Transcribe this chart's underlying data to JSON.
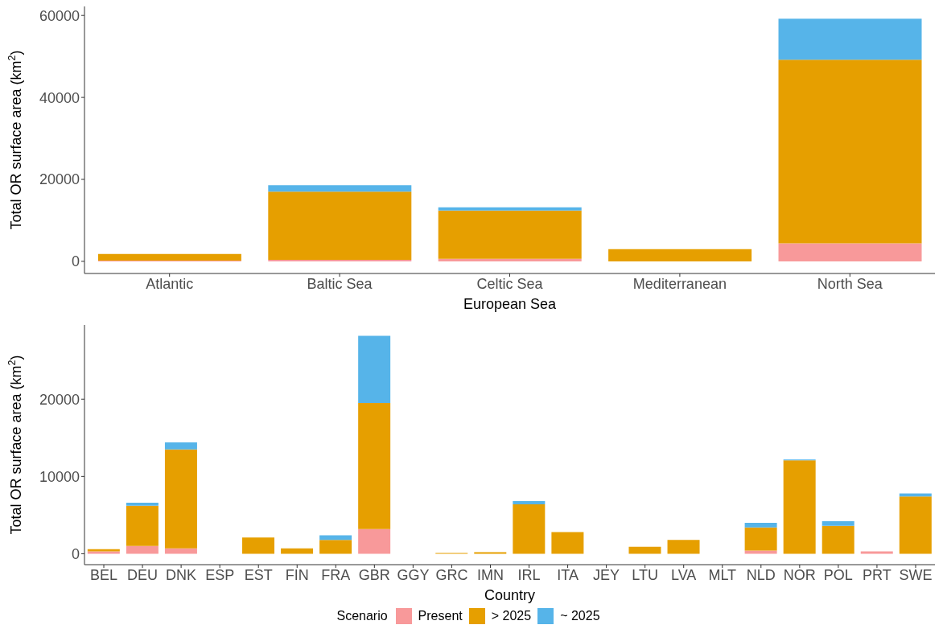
{
  "chart_data": [
    {
      "type": "bar",
      "stacked": true,
      "xlabel": "European Sea",
      "ylabel": "Total OR surface area (km$^{2}$)",
      "categories": [
        "Atlantic",
        "Baltic Sea",
        "Celtic Sea",
        "Mediterranean",
        "North Sea"
      ],
      "ylim": [
        -2960,
        62200
      ],
      "yticks": [
        0,
        20000,
        40000,
        60000
      ],
      "grid": false,
      "series": [
        {
          "color": "#f8999a",
          "values": [
            200,
            400,
            600,
            0,
            4400
          ]
        },
        {
          "color": "#e69f00",
          "values": [
            1600,
            16600,
            11800,
            3000,
            44800
          ]
        },
        {
          "color": "#56b4e9",
          "values": [
            0,
            1600,
            800,
            0,
            10000
          ]
        }
      ]
    },
    {
      "type": "bar",
      "stacked": true,
      "xlabel": "Country",
      "ylabel": "Total OR surface area (km$^{2}$)",
      "legend_title": "Scenario",
      "legend": "bottom",
      "grid": false,
      "categories": [
        "BEL",
        "DEU",
        "DNK",
        "ESP",
        "EST",
        "FIN",
        "FRA",
        "GBR",
        "GGY",
        "GRC",
        "IMN",
        "IRL",
        "ITA",
        "JEY",
        "LTU",
        "LVA",
        "MLT",
        "NLD",
        "NOR",
        "POL",
        "PRT",
        "SWE"
      ],
      "ylim": [
        -1410,
        29600
      ],
      "yticks": [
        0,
        10000,
        20000
      ],
      "series": [
        {
          "name": "Present",
          "color": "#f8999a",
          "values": [
            300,
            1000,
            700,
            0,
            0,
            0,
            0,
            3200,
            0,
            0,
            0,
            0,
            0,
            0,
            0,
            0,
            0,
            400,
            0,
            0,
            300,
            0
          ]
        },
        {
          "name": "> 2025",
          "color": "#e69f00",
          "values": [
            300,
            5200,
            12800,
            0,
            2100,
            700,
            1800,
            16300,
            0,
            100,
            200,
            6400,
            2800,
            0,
            900,
            1800,
            0,
            3000,
            12100,
            3600,
            0,
            7400
          ]
        },
        {
          "name": "~ 2025",
          "color": "#56b4e9",
          "values": [
            0,
            400,
            900,
            0,
            0,
            0,
            600,
            8700,
            0,
            0,
            0,
            400,
            0,
            0,
            0,
            0,
            0,
            600,
            100,
            600,
            0,
            400
          ]
        }
      ]
    }
  ]
}
